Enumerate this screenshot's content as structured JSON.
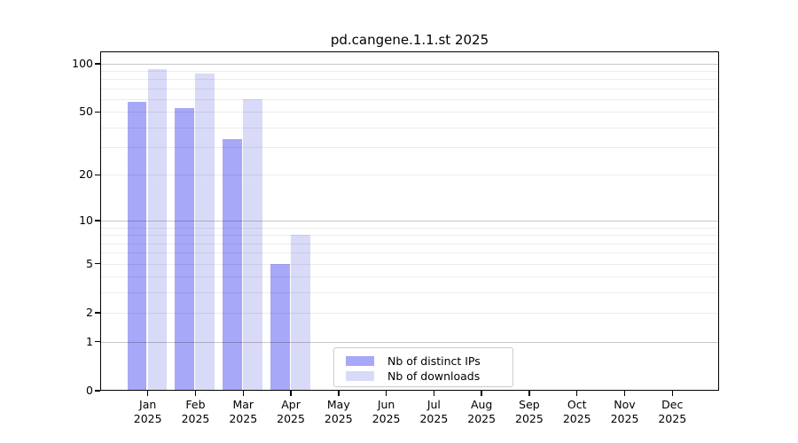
{
  "figure": {
    "title": "pd.cangene.1.1.st 2025"
  },
  "chart_data": {
    "type": "bar",
    "title": "pd.cangene.1.1.st 2025",
    "x": {
      "categories": [
        "Jan",
        "Feb",
        "Mar",
        "Apr",
        "May",
        "Jun",
        "Jul",
        "Aug",
        "Sep",
        "Oct",
        "Nov",
        "Dec"
      ],
      "year_label": "2025"
    },
    "series": [
      {
        "name": "Nb of distinct IPs",
        "color": "#a7a8f8",
        "values": [
          58,
          53,
          34,
          5,
          0,
          0,
          0,
          0,
          0,
          0,
          0,
          0
        ]
      },
      {
        "name": "Nb of downloads",
        "color": "#d9daf8",
        "values": [
          92,
          87,
          60,
          8,
          0,
          0,
          0,
          0,
          0,
          0,
          0,
          0
        ]
      }
    ],
    "y_axis": {
      "scale": "log1p",
      "tick_values": [
        0,
        1,
        2,
        5,
        10,
        20,
        50,
        100
      ],
      "major_gridlines": [
        1,
        10,
        100
      ],
      "minor_gridlines": [
        2,
        3,
        4,
        5,
        6,
        7,
        8,
        9,
        20,
        30,
        40,
        50,
        60,
        70,
        80,
        90
      ],
      "ylim": [
        0,
        118
      ]
    },
    "legend": {
      "entries": [
        "Nb of distinct IPs",
        "Nb of downloads"
      ],
      "position": "lower center"
    },
    "grid": true
  },
  "colors": {
    "background": "#ffffff",
    "bar_distinct_ips": "#a7a8f8",
    "bar_downloads": "#d9daf8",
    "axis": "#000000",
    "grid_major": "#c8c8c8",
    "grid_minor": "#ededed",
    "legend_border": "#cccccc",
    "text": "#000000"
  }
}
